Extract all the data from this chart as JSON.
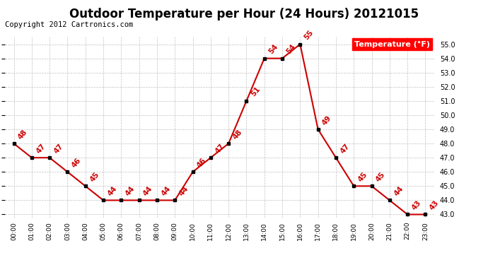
{
  "title": "Outdoor Temperature per Hour (24 Hours) 20121015",
  "copyright_text": "Copyright 2012 Cartronics.com",
  "legend_label": "Temperature (°F)",
  "hours": [
    "00:00",
    "01:00",
    "02:00",
    "03:00",
    "04:00",
    "05:00",
    "06:00",
    "07:00",
    "08:00",
    "09:00",
    "10:00",
    "11:00",
    "12:00",
    "13:00",
    "14:00",
    "15:00",
    "16:00",
    "17:00",
    "18:00",
    "19:00",
    "20:00",
    "21:00",
    "22:00",
    "23:00"
  ],
  "temperatures": [
    48,
    47,
    47,
    46,
    45,
    44,
    44,
    44,
    44,
    44,
    46,
    47,
    48,
    51,
    54,
    54,
    55,
    49,
    47,
    45,
    45,
    44,
    43,
    43
  ],
  "line_color": "#cc0000",
  "marker_color": "#000000",
  "label_color": "#cc0000",
  "bg_color": "#ffffff",
  "grid_color": "#c0c0c0",
  "ylim_min": 42.8,
  "ylim_max": 55.5,
  "ytick_min": 43.0,
  "ytick_max": 55.0,
  "ytick_step": 1.0,
  "title_fontsize": 12,
  "legend_fontsize": 8,
  "label_fontsize": 7.5,
  "copyright_fontsize": 7.5
}
